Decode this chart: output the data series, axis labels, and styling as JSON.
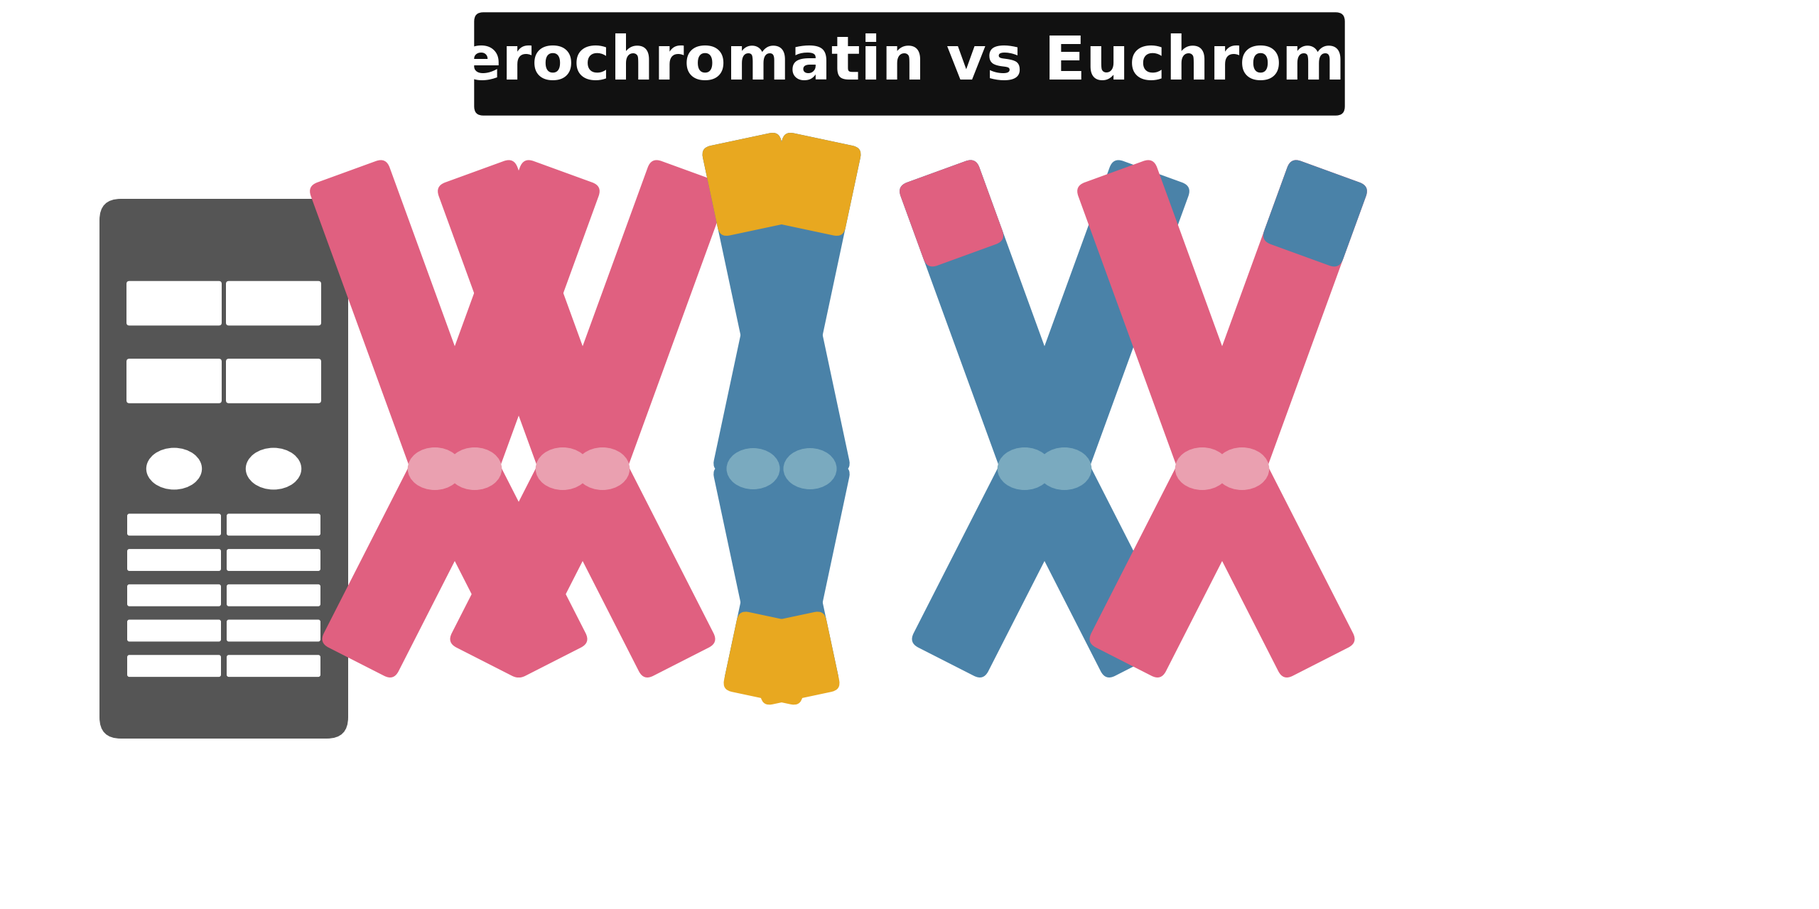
{
  "title": "Heterochromatin vs Euchromatin",
  "title_bg": "#111111",
  "title_color": "#ffffff",
  "bg_color": "#ffffff",
  "dark_chr_color": "#555555",
  "pink_color": "#E06080",
  "pink_light": "#E8809A",
  "pink_centromere": "#EAA0B0",
  "blue_color": "#4A82A8",
  "blue_light": "#5A92B8",
  "blue_centromere": "#7AAABF",
  "yellow_color": "#E8A820",
  "stripe_color": "#555555"
}
